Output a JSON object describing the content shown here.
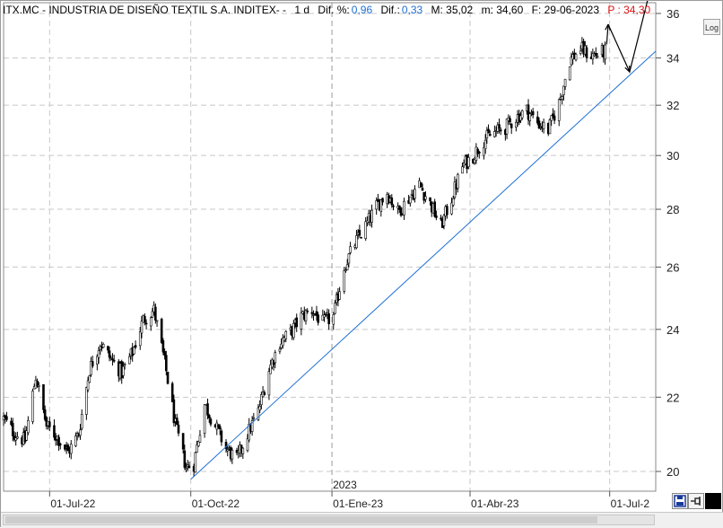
{
  "header": {
    "ticker": "ITX.MC - INDUSTRIA DE DISEÑO TEXTIL S.A. INDITEX- -",
    "interval": "1 d",
    "dif_pct_label": "Dif. %:",
    "dif_pct_value": "0,96",
    "dif_label": "Dif.:",
    "dif_value": "0,33",
    "max_label": "M: 35,02",
    "min_label": "m: 34,60",
    "date_label": "F: 29-06-2023",
    "price_label": "P : 34,30"
  },
  "controls": {
    "log_label": "Log"
  },
  "colors": {
    "up": "#000000",
    "down": "#000000",
    "trendline": "#1f6fd6",
    "grid": "#c8c8c8",
    "accent_blue": "#1f6fd6",
    "accent_red": "#e01010"
  },
  "chart_data": {
    "type": "candlestick",
    "title": "ITX.MC - INDUSTRIA DE DISEÑO TEXTIL S.A. INDITEX-",
    "x_tick_labels": [
      "01-Jul-22",
      "01-Oct-22",
      "01-Ene-23",
      "01-Abr-23",
      "01-Jul-2"
    ],
    "year_label": "2023",
    "y_tick_labels": [
      "20",
      "22",
      "24",
      "26",
      "28",
      "30",
      "32",
      "34",
      "36"
    ],
    "y_ticks": [
      20,
      22,
      24,
      26,
      28,
      30,
      32,
      34,
      36
    ],
    "ylim": [
      19.5,
      36.5
    ],
    "y_scale": "log",
    "xlim": [
      "2022-06-01",
      "2023-07-31"
    ],
    "grid": true,
    "close_series": [
      [
        "2022-06-01",
        21.4
      ],
      [
        "2022-06-08",
        21.0
      ],
      [
        "2022-06-15",
        20.8
      ],
      [
        "2022-06-22",
        22.6
      ],
      [
        "2022-06-29",
        21.2
      ],
      [
        "2022-07-06",
        20.9
      ],
      [
        "2022-07-13",
        20.5
      ],
      [
        "2022-07-20",
        21.0
      ],
      [
        "2022-07-27",
        22.8
      ],
      [
        "2022-08-03",
        23.6
      ],
      [
        "2022-08-10",
        23.1
      ],
      [
        "2022-08-17",
        22.7
      ],
      [
        "2022-08-24",
        23.3
      ],
      [
        "2022-08-31",
        24.3
      ],
      [
        "2022-09-07",
        24.6
      ],
      [
        "2022-09-14",
        23.0
      ],
      [
        "2022-09-21",
        21.2
      ],
      [
        "2022-09-28",
        20.1
      ],
      [
        "2022-10-03",
        20.2
      ],
      [
        "2022-10-10",
        21.8
      ],
      [
        "2022-10-17",
        21.2
      ],
      [
        "2022-10-24",
        20.6
      ],
      [
        "2022-10-31",
        20.3
      ],
      [
        "2022-11-07",
        21.0
      ],
      [
        "2022-11-14",
        21.6
      ],
      [
        "2022-11-21",
        22.8
      ],
      [
        "2022-11-28",
        23.6
      ],
      [
        "2022-12-05",
        23.9
      ],
      [
        "2022-12-12",
        24.4
      ],
      [
        "2022-12-19",
        24.6
      ],
      [
        "2022-12-26",
        24.2
      ],
      [
        "2023-01-02",
        24.4
      ],
      [
        "2023-01-09",
        26.0
      ],
      [
        "2023-01-16",
        26.8
      ],
      [
        "2023-01-23",
        27.4
      ],
      [
        "2023-01-30",
        28.1
      ],
      [
        "2023-02-06",
        28.6
      ],
      [
        "2023-02-13",
        27.9
      ],
      [
        "2023-02-20",
        28.4
      ],
      [
        "2023-02-27",
        28.9
      ],
      [
        "2023-03-06",
        28.2
      ],
      [
        "2023-03-13",
        27.4
      ],
      [
        "2023-03-20",
        28.4
      ],
      [
        "2023-03-27",
        29.6
      ],
      [
        "2023-04-03",
        30.0
      ],
      [
        "2023-04-10",
        30.6
      ],
      [
        "2023-04-17",
        30.9
      ],
      [
        "2023-04-24",
        31.1
      ],
      [
        "2023-05-01",
        31.5
      ],
      [
        "2023-05-08",
        31.8
      ],
      [
        "2023-05-15",
        31.3
      ],
      [
        "2023-05-22",
        31.0
      ],
      [
        "2023-05-29",
        32.1
      ],
      [
        "2023-06-05",
        33.9
      ],
      [
        "2023-06-12",
        34.4
      ],
      [
        "2023-06-19",
        34.1
      ],
      [
        "2023-06-29",
        34.3
      ]
    ],
    "trendline": {
      "start": [
        "2022-10-01",
        19.8
      ],
      "end": [
        "2023-07-31",
        34.3
      ]
    },
    "projection": [
      [
        "2023-06-29",
        34.6
      ],
      [
        "2023-06-30",
        35.5
      ],
      [
        "2023-07-14",
        33.4
      ],
      [
        "2023-07-27",
        37.0
      ]
    ],
    "last": {
      "date": "29-06-2023",
      "max": 35.02,
      "min": 34.6,
      "close": 34.3,
      "dif": 0.33,
      "dif_pct": 0.96
    }
  }
}
